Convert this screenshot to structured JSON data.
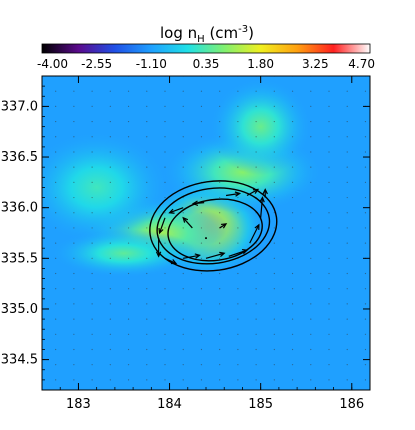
{
  "chart_data": {
    "type": "heatmap",
    "title": {
      "prefix": "log n",
      "subscript": "H",
      "unit_open": " (cm",
      "unit_exp": "-3",
      "unit_close": ")"
    },
    "colorbar": {
      "range": [
        -4.0,
        4.7
      ],
      "tick_labels": [
        "-4.00",
        "-2.55",
        "-1.10",
        "0.35",
        "1.80",
        "3.25",
        "4.70"
      ],
      "colormap": [
        "#000000",
        "#5a0a8c",
        "#2050e6",
        "#1fa0ff",
        "#20e0e6",
        "#80f070",
        "#f0f020",
        "#ffa010",
        "#ff2020",
        "#ffffff"
      ]
    },
    "xlim": [
      182.6,
      186.2
    ],
    "ylim": [
      334.2,
      337.3
    ],
    "xticks": [
      183,
      184,
      185,
      186
    ],
    "xtick_labels": [
      "183",
      "184",
      "185",
      "186"
    ],
    "yticks": [
      334.5,
      335.0,
      335.5,
      336.0,
      336.5,
      337.0
    ],
    "ytick_labels": [
      "334.5",
      "335.0",
      "335.5",
      "336.0",
      "336.5",
      "337.0"
    ],
    "density_blobs": [
      {
        "x": 184.4,
        "y": 335.8,
        "sx": 0.42,
        "sy": 0.3,
        "value": 2.5
      },
      {
        "x": 183.9,
        "y": 335.75,
        "sx": 0.55,
        "sy": 0.22,
        "value": 1.2
      },
      {
        "x": 184.8,
        "y": 336.35,
        "sx": 0.55,
        "sy": 0.25,
        "value": 0.9
      },
      {
        "x": 185.0,
        "y": 336.8,
        "sx": 0.35,
        "sy": 0.3,
        "value": 0.6
      },
      {
        "x": 183.2,
        "y": 336.2,
        "sx": 0.5,
        "sy": 0.35,
        "value": 0.2
      },
      {
        "x": 183.5,
        "y": 335.55,
        "sx": 0.5,
        "sy": 0.15,
        "value": 0.5
      }
    ],
    "background_value": -1.1,
    "contours": [
      {
        "cx": 184.48,
        "cy": 335.82,
        "rx": 0.7,
        "ry": 0.44
      },
      {
        "cx": 184.48,
        "cy": 335.82,
        "rx": 0.62,
        "ry": 0.37
      },
      {
        "cx": 184.5,
        "cy": 335.78,
        "rx": 0.52,
        "ry": 0.3
      }
    ],
    "vectors": [
      {
        "x": 184.85,
        "y": 336.12,
        "dx": 0.12,
        "dy": 0.06
      },
      {
        "x": 184.62,
        "y": 336.12,
        "dx": 0.15,
        "dy": 0.02
      },
      {
        "x": 184.38,
        "y": 336.05,
        "dx": -0.12,
        "dy": -0.01
      },
      {
        "x": 184.15,
        "y": 336.0,
        "dx": -0.15,
        "dy": -0.05
      },
      {
        "x": 183.95,
        "y": 335.9,
        "dx": -0.06,
        "dy": -0.15
      },
      {
        "x": 183.88,
        "y": 335.7,
        "dx": 0.0,
        "dy": -0.18
      },
      {
        "x": 183.95,
        "y": 335.5,
        "dx": 0.12,
        "dy": -0.05
      },
      {
        "x": 184.15,
        "y": 335.5,
        "dx": 0.18,
        "dy": 0.03
      },
      {
        "x": 184.4,
        "y": 335.5,
        "dx": 0.2,
        "dy": 0.05
      },
      {
        "x": 184.65,
        "y": 335.52,
        "dx": 0.2,
        "dy": 0.06
      },
      {
        "x": 184.88,
        "y": 335.65,
        "dx": 0.1,
        "dy": 0.18
      },
      {
        "x": 185.0,
        "y": 335.9,
        "dx": 0.02,
        "dy": 0.2
      },
      {
        "x": 185.05,
        "y": 336.1,
        "dx": 0.0,
        "dy": 0.08
      },
      {
        "x": 184.55,
        "y": 335.8,
        "dx": 0.07,
        "dy": 0.04
      },
      {
        "x": 184.25,
        "y": 335.8,
        "dx": -0.1,
        "dy": 0.1
      },
      {
        "x": 184.4,
        "y": 335.7,
        "dx": 0.0,
        "dy": 0.0
      }
    ]
  }
}
